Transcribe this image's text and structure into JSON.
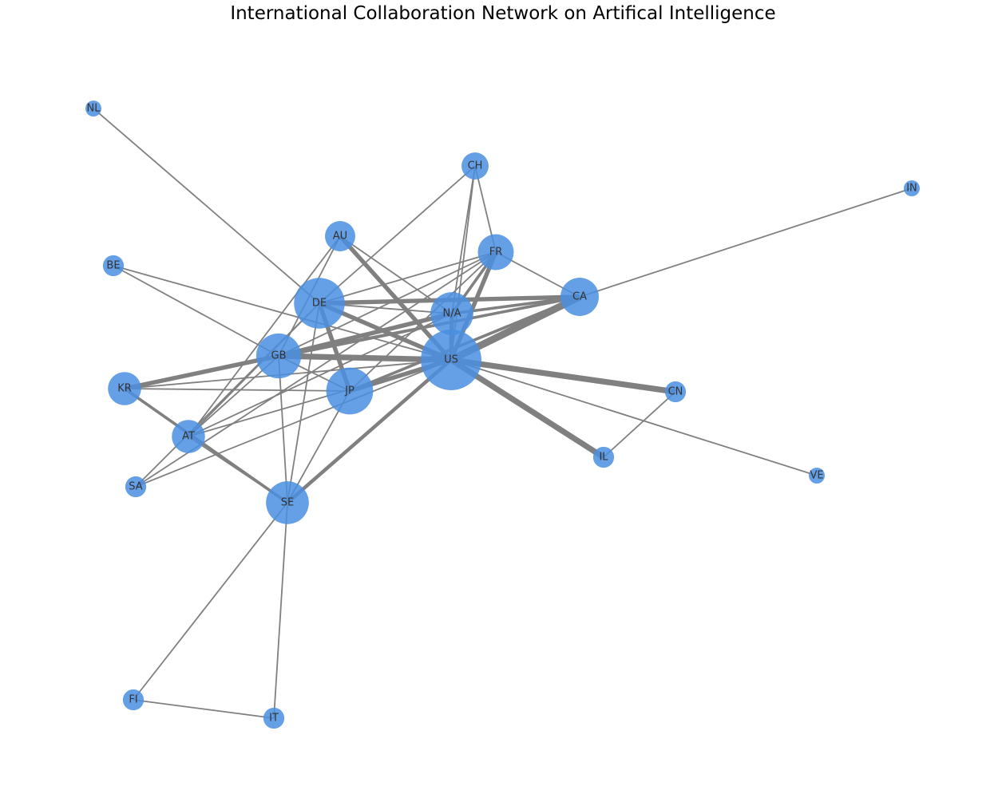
{
  "title": "International Collaboration Network on Artifical Intelligence",
  "colors": {
    "node": "#4a8ee0",
    "edge": "#808080",
    "label": "#333333"
  },
  "nodes": [
    {
      "id": "US",
      "label": "US",
      "weight": 10
    },
    {
      "id": "DE",
      "label": "DE",
      "weight": 7
    },
    {
      "id": "N/A",
      "label": "N/A",
      "weight": 5
    },
    {
      "id": "JP",
      "label": "JP",
      "weight": 6
    },
    {
      "id": "GB",
      "label": "GB",
      "weight": 5.5
    },
    {
      "id": "SE",
      "label": "SE",
      "weight": 5
    },
    {
      "id": "CA",
      "label": "CA",
      "weight": 4
    },
    {
      "id": "FR",
      "label": "FR",
      "weight": 3.5
    },
    {
      "id": "KR",
      "label": "KR",
      "weight": 3
    },
    {
      "id": "AT",
      "label": "AT",
      "weight": 3
    },
    {
      "id": "AU",
      "label": "AU",
      "weight": 2.5
    },
    {
      "id": "CH",
      "label": "CH",
      "weight": 2
    },
    {
      "id": "CN",
      "label": "CN",
      "weight": 1.2
    },
    {
      "id": "IL",
      "label": "IL",
      "weight": 1.2
    },
    {
      "id": "BE",
      "label": "BE",
      "weight": 1.2
    },
    {
      "id": "SA",
      "label": "SA",
      "weight": 1.2
    },
    {
      "id": "FI",
      "label": "FI",
      "weight": 1.2
    },
    {
      "id": "IT",
      "label": "IT",
      "weight": 1.2
    },
    {
      "id": "NL",
      "label": "NL",
      "weight": 0.6
    },
    {
      "id": "IN",
      "label": "IN",
      "weight": 0.6
    },
    {
      "id": "VE",
      "label": "VE",
      "weight": 0.6
    }
  ],
  "edges": [
    {
      "source": "US",
      "target": "CA",
      "weight": 5
    },
    {
      "source": "US",
      "target": "CN",
      "weight": 4
    },
    {
      "source": "US",
      "target": "IL",
      "weight": 4
    },
    {
      "source": "US",
      "target": "GB",
      "weight": 4
    },
    {
      "source": "US",
      "target": "DE",
      "weight": 3
    },
    {
      "source": "US",
      "target": "AU",
      "weight": 3
    },
    {
      "source": "US",
      "target": "SE",
      "weight": 2.5
    },
    {
      "source": "US",
      "target": "JP",
      "weight": 3
    },
    {
      "source": "US",
      "target": "N/A",
      "weight": 3
    },
    {
      "source": "US",
      "target": "FR",
      "weight": 3
    },
    {
      "source": "US",
      "target": "VE",
      "weight": 1
    },
    {
      "source": "US",
      "target": "SA",
      "weight": 1
    },
    {
      "source": "US",
      "target": "AT",
      "weight": 1
    },
    {
      "source": "US",
      "target": "BE",
      "weight": 1
    },
    {
      "source": "US",
      "target": "KR",
      "weight": 1
    },
    {
      "source": "US",
      "target": "CH",
      "weight": 1
    },
    {
      "source": "DE",
      "target": "CA",
      "weight": 3
    },
    {
      "source": "DE",
      "target": "N/A",
      "weight": 1
    },
    {
      "source": "DE",
      "target": "JP",
      "weight": 3
    },
    {
      "source": "DE",
      "target": "NL",
      "weight": 1
    },
    {
      "source": "DE",
      "target": "CH",
      "weight": 1
    },
    {
      "source": "DE",
      "target": "FR",
      "weight": 1
    },
    {
      "source": "DE",
      "target": "SE",
      "weight": 1
    },
    {
      "source": "DE",
      "target": "AT",
      "weight": 1
    },
    {
      "source": "DE",
      "target": "SA",
      "weight": 1
    },
    {
      "source": "GB",
      "target": "KR",
      "weight": 3
    },
    {
      "source": "GB",
      "target": "N/A",
      "weight": 3
    },
    {
      "source": "GB",
      "target": "CA",
      "weight": 2
    },
    {
      "source": "GB",
      "target": "SE",
      "weight": 1
    },
    {
      "source": "GB",
      "target": "AT",
      "weight": 1
    },
    {
      "source": "GB",
      "target": "BE",
      "weight": 1
    },
    {
      "source": "GB",
      "target": "JP",
      "weight": 1
    },
    {
      "source": "GB",
      "target": "AU",
      "weight": 1
    },
    {
      "source": "GB",
      "target": "FR",
      "weight": 1
    },
    {
      "source": "JP",
      "target": "KR",
      "weight": 1
    },
    {
      "source": "JP",
      "target": "SE",
      "weight": 1
    },
    {
      "source": "JP",
      "target": "CA",
      "weight": 2
    },
    {
      "source": "JP",
      "target": "FR",
      "weight": 1
    },
    {
      "source": "KR",
      "target": "SE",
      "weight": 2
    },
    {
      "source": "KR",
      "target": "CA",
      "weight": 1
    },
    {
      "source": "AT",
      "target": "SE",
      "weight": 1
    },
    {
      "source": "AT",
      "target": "AU",
      "weight": 1
    },
    {
      "source": "AT",
      "target": "N/A",
      "weight": 1
    },
    {
      "source": "N/A",
      "target": "AU",
      "weight": 1
    },
    {
      "source": "N/A",
      "target": "CH",
      "weight": 1
    },
    {
      "source": "N/A",
      "target": "FR",
      "weight": 2
    },
    {
      "source": "N/A",
      "target": "CA",
      "weight": 2
    },
    {
      "source": "FR",
      "target": "CA",
      "weight": 1
    },
    {
      "source": "FR",
      "target": "CH",
      "weight": 1
    },
    {
      "source": "FR",
      "target": "SA",
      "weight": 1
    },
    {
      "source": "CA",
      "target": "IN",
      "weight": 1
    },
    {
      "source": "CN",
      "target": "IL",
      "weight": 1
    },
    {
      "source": "SE",
      "target": "FI",
      "weight": 1
    },
    {
      "source": "SE",
      "target": "IT",
      "weight": 1
    },
    {
      "source": "FI",
      "target": "IT",
      "weight": 1
    }
  ]
}
